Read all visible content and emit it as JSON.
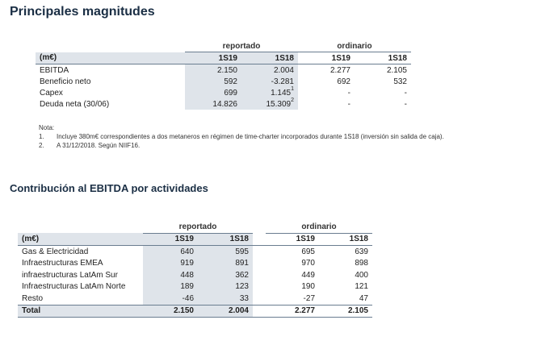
{
  "title": "Principales magnitudes",
  "table1": {
    "group_reportado": "reportado",
    "group_ordinario": "ordinario",
    "header": [
      "(m€)",
      "1S19",
      "1S18",
      "1S19",
      "1S18"
    ],
    "rows": [
      {
        "label": "EBITDA",
        "r19": "2.150",
        "r18": "2.004",
        "r18_sup": "",
        "o19": "2.277",
        "o18": "2.105"
      },
      {
        "label": "Beneficio neto",
        "r19": "592",
        "r18": "-3.281",
        "r18_sup": "",
        "o19": "692",
        "o18": "532"
      },
      {
        "label": "Capex",
        "r19": "699",
        "r18": "1.145",
        "r18_sup": "1",
        "o19": "-",
        "o18": "-"
      },
      {
        "label": "Deuda neta (30/06)",
        "r19": "14.826",
        "r18": "15.309",
        "r18_sup": "2",
        "o19": "-",
        "o18": "-"
      }
    ]
  },
  "notes": {
    "label": "Nota:",
    "items": [
      {
        "num": "1.",
        "text": "Incluye 380m€ correspondientes a dos metaneros en régimen de time-charter incorporados durante 1S18 (inversión sin salida de caja)."
      },
      {
        "num": "2.",
        "text": "A 31/12/2018. Según NIIF16."
      }
    ]
  },
  "subtitle": "Contribución al EBITDA por actividades",
  "table2": {
    "group_reportado": "reportado",
    "group_ordinario": "ordinario",
    "header": [
      "(m€)",
      "1S19",
      "1S18",
      "1S19",
      "1S18"
    ],
    "rows": [
      {
        "label": "Gas & Electricidad",
        "r19": "640",
        "r18": "595",
        "o19": "695",
        "o18": "639"
      },
      {
        "label": "Infraestructuras EMEA",
        "r19": "919",
        "r18": "891",
        "o19": "970",
        "o18": "898"
      },
      {
        "label": "infraestructuras LatAm Sur",
        "r19": "448",
        "r18": "362",
        "o19": "449",
        "o18": "400"
      },
      {
        "label": "Infraestructuras LatAm Norte",
        "r19": "189",
        "r18": "123",
        "o19": "190",
        "o18": "121"
      },
      {
        "label": "Resto",
        "r19": "-46",
        "r18": "33",
        "o19": "-27",
        "o18": "47"
      }
    ],
    "total": {
      "label": "Total",
      "r19": "2.150",
      "r18": "2.004",
      "o19": "2.277",
      "o18": "2.105"
    }
  }
}
